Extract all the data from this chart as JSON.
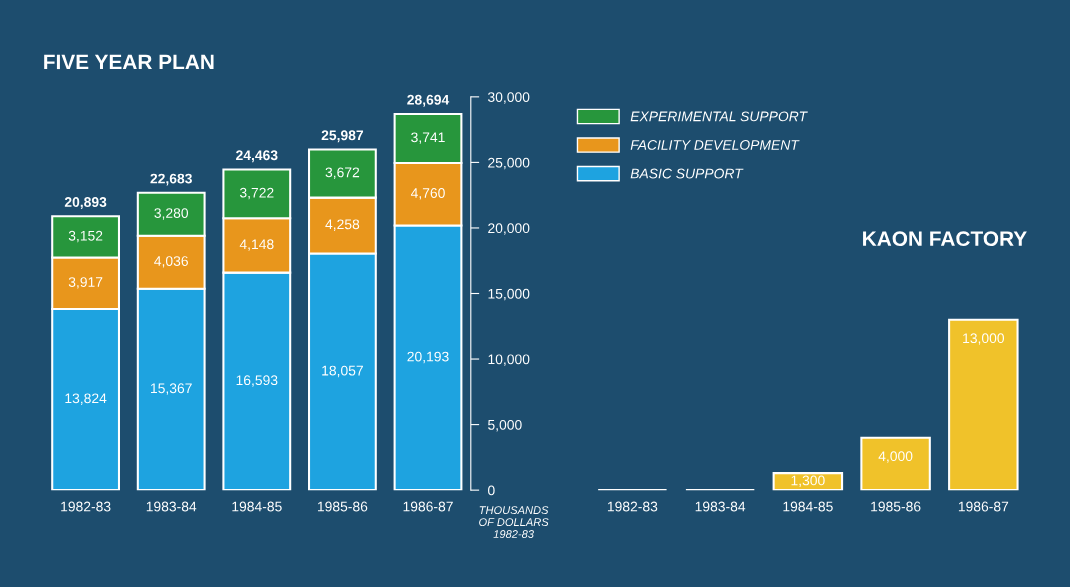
{
  "chart_data": [
    {
      "type": "bar",
      "title": "FIVE YEAR PLAN",
      "stacked": true,
      "categories": [
        "1982-83",
        "1983-84",
        "1984-85",
        "1985-86",
        "1986-87"
      ],
      "series": [
        {
          "name": "BASIC SUPPORT",
          "color": "#1ea3e0",
          "values": [
            13824,
            15367,
            16593,
            18057,
            20193
          ]
        },
        {
          "name": "FACILITY DEVELOPMENT",
          "color": "#e8961c",
          "values": [
            3917,
            4036,
            4148,
            4258,
            4760
          ]
        },
        {
          "name": "EXPERIMENTAL SUPPORT",
          "color": "#27963c",
          "values": [
            3152,
            3280,
            3722,
            3672,
            3741
          ]
        }
      ],
      "value_labels": [
        [
          "13,824",
          "15,367",
          "16,593",
          "18,057",
          "20,193"
        ],
        [
          "3,917",
          "4,036",
          "4,148",
          "4,258",
          "4,760"
        ],
        [
          "3,152",
          "3,280",
          "3,722",
          "3,672",
          "3,741"
        ]
      ],
      "totals": [
        "20,893",
        "22,683",
        "24,463",
        "25,987",
        "28,694"
      ],
      "ylim": [
        0,
        30000
      ],
      "yticks": [
        0,
        {
          "value": 5000,
          "label": "5,000"
        },
        {
          "value": 10000,
          "label": "10,000"
        },
        {
          "value": 15000,
          "label": "15,000"
        },
        {
          "value": 20000,
          "label": "20,000"
        },
        {
          "value": 25000,
          "label": "25,000"
        },
        {
          "value": 30000,
          "label": "30,000"
        }
      ],
      "ylabel": "THOUSANDS\nOF DOLLARS\n1982-83",
      "legend": "top right",
      "grid": false
    },
    {
      "type": "bar",
      "title": "KAON FACTORY",
      "categories": [
        "1982-83",
        "1983-84",
        "1984-85",
        "1985-86",
        "1986-87"
      ],
      "values": [
        0,
        0,
        1300,
        4000,
        13000
      ],
      "color": "#f0c22a",
      "value_labels": [
        null,
        null,
        "1,300",
        "4,000",
        "13,000"
      ],
      "ylim": [
        0,
        30000
      ],
      "tick_labels": "x",
      "grid": false
    }
  ]
}
